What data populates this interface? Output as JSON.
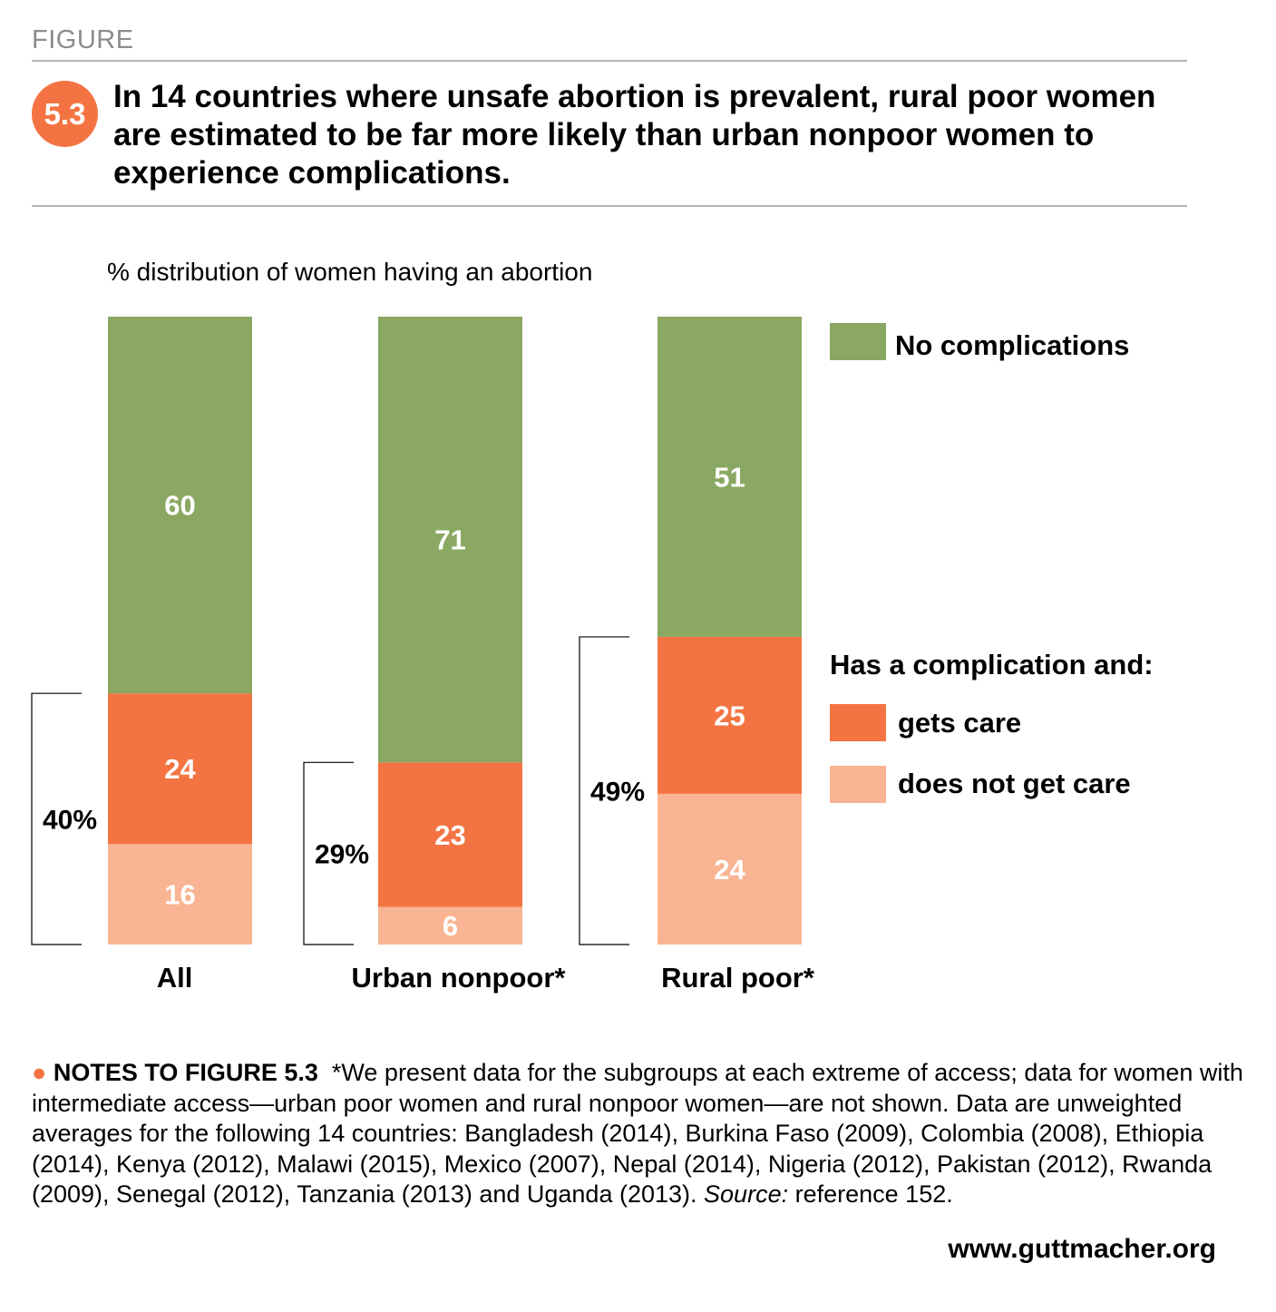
{
  "figure_label": "FIGURE",
  "figure_number": "5.3",
  "title": "In 14 countries where unsafe abortion is prevalent, rural poor women are estimated to be far more likely than urban nonpoor women to experience complications.",
  "colors": {
    "no_complications": "#8aa862",
    "gets_care": "#f37442",
    "no_care": "#f9b593",
    "accent": "#f37442"
  },
  "chart_data": {
    "type": "bar",
    "stacked": true,
    "subtitle": "% distribution of women having an abortion",
    "categories": [
      "All",
      "Urban nonpoor*",
      "Rural poor*"
    ],
    "series": [
      {
        "name": "does not get care",
        "values": [
          16,
          6,
          24
        ]
      },
      {
        "name": "gets care",
        "values": [
          24,
          23,
          25
        ]
      },
      {
        "name": "No complications",
        "values": [
          60,
          71,
          51
        ]
      }
    ],
    "complication_totals": [
      "40%",
      "29%",
      "49%"
    ],
    "legend": {
      "heading": "Has a complication and:",
      "placement": "right"
    },
    "ylim": [
      0,
      100
    ]
  },
  "notes": {
    "heading": "NOTES TO FIGURE 5.3",
    "text": "*We present data for the subgroups at each extreme of access; data for women with intermediate access—urban poor women and rural nonpoor women—are not shown. Data are unweighted averages for the following 14 countries: Bangladesh (2014), Burkina Faso (2009), Colombia (2008), Ethiopia (2014), Kenya (2012), Malawi (2015), Mexico (2007), Nepal (2014), Nigeria (2012), Pakistan (2012), Rwanda (2009), Senegal (2012), Tanzania (2013) and Uganda (2013).",
    "source_label": "Source:",
    "source_text": "reference 152."
  },
  "url": "www.guttmacher.org"
}
